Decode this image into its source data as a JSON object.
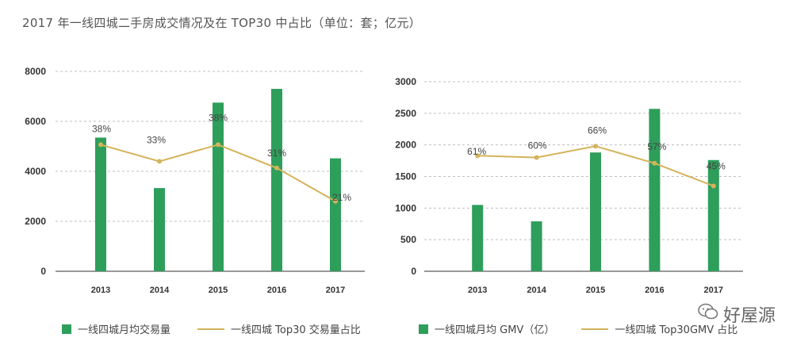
{
  "title": "2017 年一线四城二手房成交情况及在 TOP30 中占比（单位：套；亿元）",
  "watermark": {
    "text": "好屋源"
  },
  "colors": {
    "bar": "#2e9e5b",
    "line": "#d4b45a",
    "grid": "#bfbfbf",
    "axis": "#333333"
  },
  "chart_data": [
    {
      "type": "bar",
      "categories": [
        "2013",
        "2014",
        "2015",
        "2016",
        "2017"
      ],
      "series": [
        {
          "name": "一线四城月均交易量",
          "type": "bar",
          "axis": "left",
          "values": [
            5350,
            3330,
            6750,
            7300,
            4520
          ]
        },
        {
          "name": "一线四城 Top30 交易量占比",
          "type": "line",
          "axis": "right",
          "values": [
            38,
            33,
            38,
            31,
            21
          ],
          "labels": [
            "38%",
            "33%",
            "38%",
            "31%",
            "21%"
          ]
        }
      ],
      "yticks": [
        "0",
        "2000",
        "4000",
        "6000",
        "8000"
      ],
      "ylim": [
        0,
        8000
      ],
      "ylim_secondary": [
        0,
        60
      ],
      "grid": true,
      "legend_position": "bottom"
    },
    {
      "type": "bar",
      "categories": [
        "2013",
        "2014",
        "2015",
        "2016",
        "2017"
      ],
      "series": [
        {
          "name": "一线四城月均 GMV（亿）",
          "type": "bar",
          "axis": "left",
          "values": [
            1050,
            790,
            1880,
            2570,
            1760
          ]
        },
        {
          "name": "一线四城 Top30GMV 占比",
          "type": "line",
          "axis": "right",
          "values": [
            61,
            60,
            66,
            57,
            45
          ],
          "labels": [
            "61%",
            "60%",
            "66%",
            "57%",
            "45%"
          ]
        }
      ],
      "yticks": [
        "0",
        "500",
        "1000",
        "1500",
        "2000",
        "2500",
        "3000"
      ],
      "ylim": [
        0,
        3000
      ],
      "ylim_secondary": [
        0,
        100
      ],
      "grid": true,
      "legend_position": "bottom"
    }
  ]
}
